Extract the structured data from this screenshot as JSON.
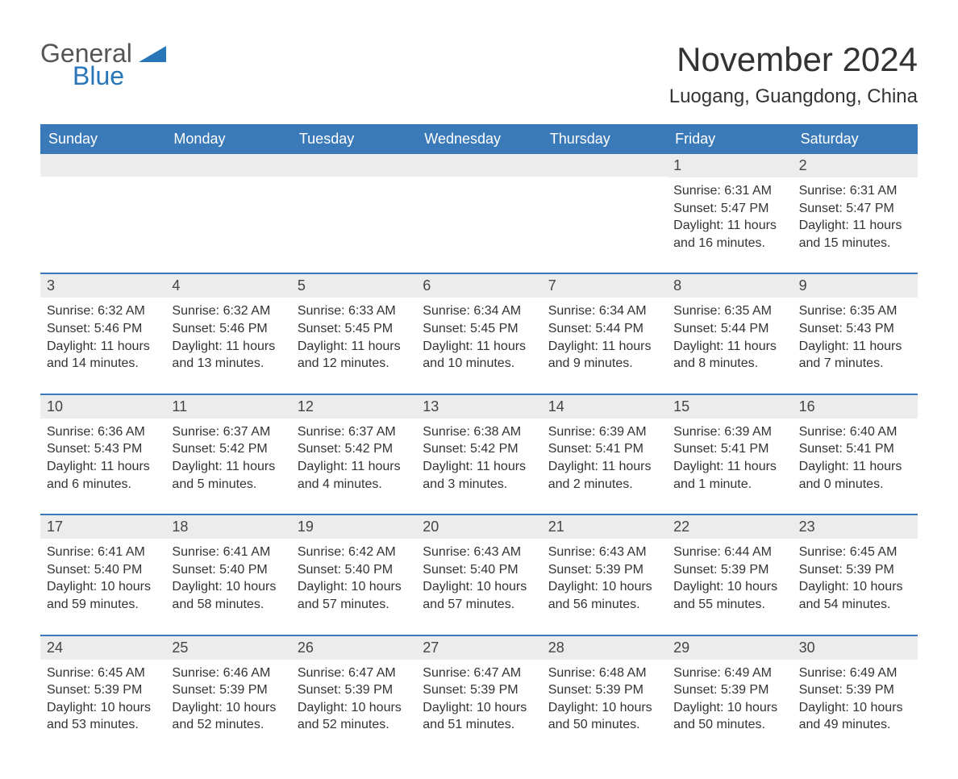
{
  "logo": {
    "text1": "General",
    "text2": "Blue",
    "shape_color": "#2876b8"
  },
  "title": "November 2024",
  "location": "Luogang, Guangdong, China",
  "colors": {
    "header_bg": "#3a7ab8",
    "header_text": "#ffffff",
    "daynum_bg": "#ececec",
    "week_border": "#3a7ab8",
    "text": "#333333"
  },
  "day_names": [
    "Sunday",
    "Monday",
    "Tuesday",
    "Wednesday",
    "Thursday",
    "Friday",
    "Saturday"
  ],
  "weeks": [
    [
      {
        "empty": true
      },
      {
        "empty": true
      },
      {
        "empty": true
      },
      {
        "empty": true
      },
      {
        "empty": true
      },
      {
        "day": "1",
        "sunrise": "6:31 AM",
        "sunset": "5:47 PM",
        "daylight": "11 hours and 16 minutes."
      },
      {
        "day": "2",
        "sunrise": "6:31 AM",
        "sunset": "5:47 PM",
        "daylight": "11 hours and 15 minutes."
      }
    ],
    [
      {
        "day": "3",
        "sunrise": "6:32 AM",
        "sunset": "5:46 PM",
        "daylight": "11 hours and 14 minutes."
      },
      {
        "day": "4",
        "sunrise": "6:32 AM",
        "sunset": "5:46 PM",
        "daylight": "11 hours and 13 minutes."
      },
      {
        "day": "5",
        "sunrise": "6:33 AM",
        "sunset": "5:45 PM",
        "daylight": "11 hours and 12 minutes."
      },
      {
        "day": "6",
        "sunrise": "6:34 AM",
        "sunset": "5:45 PM",
        "daylight": "11 hours and 10 minutes."
      },
      {
        "day": "7",
        "sunrise": "6:34 AM",
        "sunset": "5:44 PM",
        "daylight": "11 hours and 9 minutes."
      },
      {
        "day": "8",
        "sunrise": "6:35 AM",
        "sunset": "5:44 PM",
        "daylight": "11 hours and 8 minutes."
      },
      {
        "day": "9",
        "sunrise": "6:35 AM",
        "sunset": "5:43 PM",
        "daylight": "11 hours and 7 minutes."
      }
    ],
    [
      {
        "day": "10",
        "sunrise": "6:36 AM",
        "sunset": "5:43 PM",
        "daylight": "11 hours and 6 minutes."
      },
      {
        "day": "11",
        "sunrise": "6:37 AM",
        "sunset": "5:42 PM",
        "daylight": "11 hours and 5 minutes."
      },
      {
        "day": "12",
        "sunrise": "6:37 AM",
        "sunset": "5:42 PM",
        "daylight": "11 hours and 4 minutes."
      },
      {
        "day": "13",
        "sunrise": "6:38 AM",
        "sunset": "5:42 PM",
        "daylight": "11 hours and 3 minutes."
      },
      {
        "day": "14",
        "sunrise": "6:39 AM",
        "sunset": "5:41 PM",
        "daylight": "11 hours and 2 minutes."
      },
      {
        "day": "15",
        "sunrise": "6:39 AM",
        "sunset": "5:41 PM",
        "daylight": "11 hours and 1 minute."
      },
      {
        "day": "16",
        "sunrise": "6:40 AM",
        "sunset": "5:41 PM",
        "daylight": "11 hours and 0 minutes."
      }
    ],
    [
      {
        "day": "17",
        "sunrise": "6:41 AM",
        "sunset": "5:40 PM",
        "daylight": "10 hours and 59 minutes."
      },
      {
        "day": "18",
        "sunrise": "6:41 AM",
        "sunset": "5:40 PM",
        "daylight": "10 hours and 58 minutes."
      },
      {
        "day": "19",
        "sunrise": "6:42 AM",
        "sunset": "5:40 PM",
        "daylight": "10 hours and 57 minutes."
      },
      {
        "day": "20",
        "sunrise": "6:43 AM",
        "sunset": "5:40 PM",
        "daylight": "10 hours and 57 minutes."
      },
      {
        "day": "21",
        "sunrise": "6:43 AM",
        "sunset": "5:39 PM",
        "daylight": "10 hours and 56 minutes."
      },
      {
        "day": "22",
        "sunrise": "6:44 AM",
        "sunset": "5:39 PM",
        "daylight": "10 hours and 55 minutes."
      },
      {
        "day": "23",
        "sunrise": "6:45 AM",
        "sunset": "5:39 PM",
        "daylight": "10 hours and 54 minutes."
      }
    ],
    [
      {
        "day": "24",
        "sunrise": "6:45 AM",
        "sunset": "5:39 PM",
        "daylight": "10 hours and 53 minutes."
      },
      {
        "day": "25",
        "sunrise": "6:46 AM",
        "sunset": "5:39 PM",
        "daylight": "10 hours and 52 minutes."
      },
      {
        "day": "26",
        "sunrise": "6:47 AM",
        "sunset": "5:39 PM",
        "daylight": "10 hours and 52 minutes."
      },
      {
        "day": "27",
        "sunrise": "6:47 AM",
        "sunset": "5:39 PM",
        "daylight": "10 hours and 51 minutes."
      },
      {
        "day": "28",
        "sunrise": "6:48 AM",
        "sunset": "5:39 PM",
        "daylight": "10 hours and 50 minutes."
      },
      {
        "day": "29",
        "sunrise": "6:49 AM",
        "sunset": "5:39 PM",
        "daylight": "10 hours and 50 minutes."
      },
      {
        "day": "30",
        "sunrise": "6:49 AM",
        "sunset": "5:39 PM",
        "daylight": "10 hours and 49 minutes."
      }
    ]
  ],
  "labels": {
    "sunrise": "Sunrise:",
    "sunset": "Sunset:",
    "daylight": "Daylight:"
  }
}
